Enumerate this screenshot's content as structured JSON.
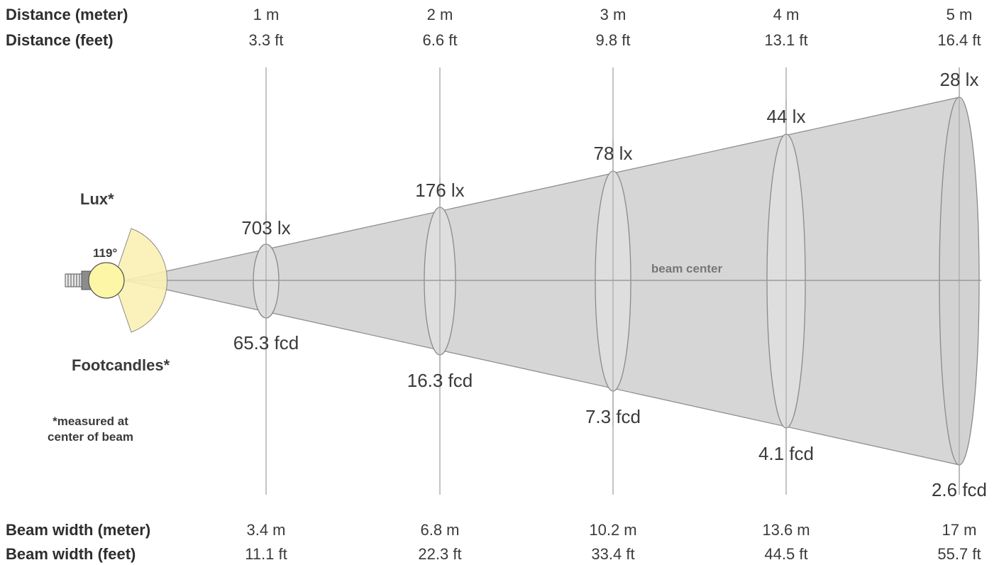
{
  "header": {
    "distance_meter_label": "Distance (meter)",
    "distance_feet_label": "Distance (feet)",
    "distances_m": [
      "1 m",
      "2 m",
      "3 m",
      "4 m",
      "5 m"
    ],
    "distances_ft": [
      "3.3 ft",
      "6.6 ft",
      "9.8 ft",
      "13.1 ft",
      "16.4 ft"
    ]
  },
  "footer": {
    "beam_width_meter_label": "Beam width (meter)",
    "beam_width_feet_label": "Beam width (feet)",
    "widths_m": [
      "3.4 m",
      "6.8 m",
      "10.2 m",
      "13.6 m",
      "17 m"
    ],
    "widths_ft": [
      "11.1 ft",
      "22.3 ft",
      "33.4 ft",
      "44.5 ft",
      "55.7 ft"
    ]
  },
  "lux_values": [
    "703 lx",
    "176 lx",
    "78 lx",
    "44 lx",
    "28 lx"
  ],
  "fcd_values": [
    "65.3 fcd",
    "16.3 fcd",
    "7.3 fcd",
    "4.1 fcd",
    "2.6 fcd"
  ],
  "beam_angle": "119°",
  "beam_center_label": "beam center",
  "lux_label": "Lux*",
  "footcandles_label": "Footcandles*",
  "note_line1": "*measured at",
  "note_line2": "center of beam",
  "colors": {
    "cone_fill": "#d4d4d4",
    "ellipse_fill": "#dedede",
    "outline": "#8a8a8a",
    "guide_line": "#b0b0b0",
    "bulb": "#fdf6a6",
    "beam_wedge": "#fbf1b4"
  }
}
